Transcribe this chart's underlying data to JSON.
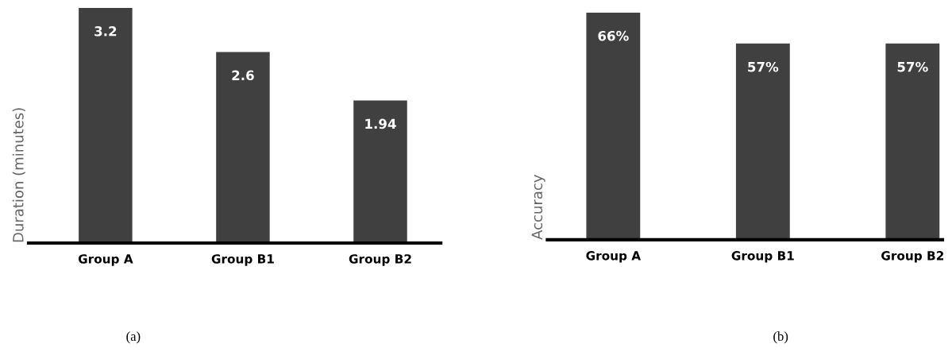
{
  "chart_data": [
    {
      "type": "bar",
      "categories": [
        "Group A",
        "Group B1",
        "Group B2"
      ],
      "values": [
        3.2,
        2.6,
        1.94
      ],
      "color": "#404040",
      "ylabel": "Duration (minutes)",
      "ylim": [
        0,
        3.2
      ],
      "data_labels": true,
      "tick_labels": "x",
      "grid": false,
      "legend": false,
      "annotations": [
        "(a)"
      ]
    },
    {
      "type": "bar",
      "categories": [
        "Group A",
        "Group B1",
        "Group B2"
      ],
      "values": [
        66,
        57,
        57
      ],
      "value_labels": [
        "66%",
        "57%",
        "57%"
      ],
      "color": "#404040",
      "ylabel": "Accuracy",
      "ylim": [
        0,
        66
      ],
      "tick_labels": "x",
      "grid": false,
      "legend": false,
      "annotations": [
        "(b)"
      ]
    }
  ]
}
